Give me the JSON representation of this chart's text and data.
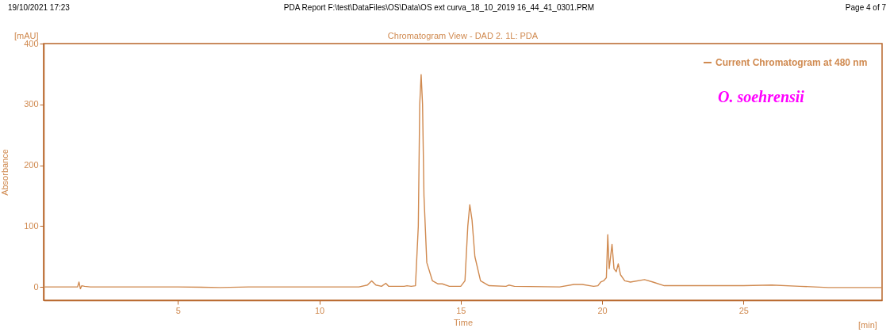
{
  "chart_data": {
    "type": "line",
    "title": "Chromatogram View - DAD 2. 1L: PDA",
    "xlabel": "Time",
    "ylabel": "Absorbance",
    "annotations": [
      "19/10/2021   17:23",
      "PDA Report F:\\test\\DataFiles\\OS\\Data\\OS ext curva_18_10_2019 16_44_41_0301.PRM",
      "Page 4 of 7",
      "[mAU]",
      "[min]",
      "O. soehrensii"
    ],
    "series": [
      {
        "name": "Current Chromatogram at 480 nm",
        "color": "#d08a50",
        "x": [
          0.25,
          1.3,
          1.45,
          1.5,
          1.55,
          1.6,
          1.7,
          1.9,
          5,
          6.5,
          7.5,
          11.4,
          11.7,
          11.85,
          12.0,
          12.2,
          12.35,
          12.45,
          13.0,
          13.1,
          13.25,
          13.4,
          13.5,
          13.55,
          13.6,
          13.65,
          13.7,
          13.8,
          14.0,
          14.2,
          14.35,
          14.6,
          15.0,
          15.15,
          15.25,
          15.32,
          15.4,
          15.5,
          15.7,
          16.0,
          16.6,
          16.7,
          16.9,
          18.5,
          19.0,
          19.3,
          19.7,
          19.85,
          19.95,
          20.05,
          20.15,
          20.2,
          20.25,
          20.35,
          20.42,
          20.5,
          20.57,
          20.65,
          20.8,
          21.0,
          21.5,
          21.8,
          22.2,
          25.0,
          26.0,
          27.0,
          28.0,
          29.9
        ],
        "values": [
          0,
          0,
          0,
          8,
          -3,
          2,
          1,
          0,
          0,
          -1,
          0,
          0,
          3,
          10,
          3,
          1,
          6,
          1,
          1,
          2,
          1,
          2,
          100,
          300,
          349,
          300,
          150,
          40,
          10,
          5,
          5,
          1,
          1,
          10,
          100,
          135,
          110,
          50,
          10,
          2,
          1,
          3,
          1,
          0,
          4,
          4,
          1,
          2,
          8,
          10,
          15,
          86,
          30,
          70,
          30,
          25,
          38,
          20,
          10,
          8,
          12,
          8,
          2,
          2,
          3,
          1,
          -1,
          -1
        ]
      }
    ],
    "xlim": [
      0.25,
      29.9
    ],
    "ylim": [
      -22,
      400
    ],
    "xticks": [
      5,
      10,
      15,
      20,
      25
    ],
    "yticks": [
      0,
      100,
      200,
      300,
      400
    ],
    "grid": false,
    "legend": "top right",
    "line_style": "solid",
    "marker": "none"
  }
}
